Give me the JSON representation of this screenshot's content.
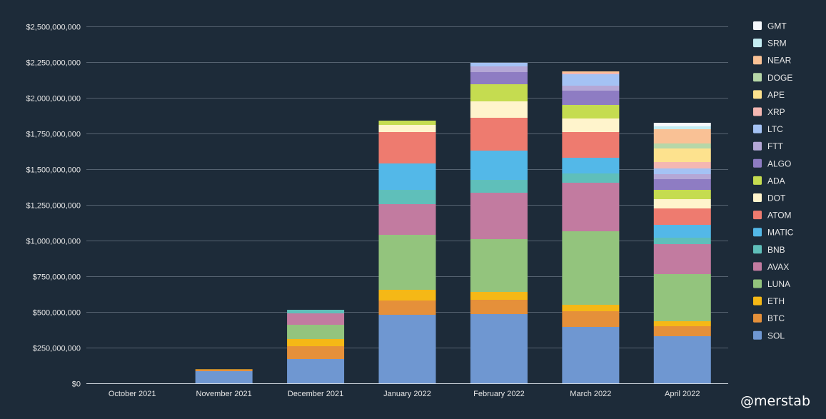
{
  "chart_data": {
    "type": "bar",
    "stacked": true,
    "categories": [
      "October 2021",
      "November 2021",
      "December 2021",
      "January 2022",
      "February 2022",
      "March 2022",
      "April 2022"
    ],
    "ylim": [
      0,
      2500000000
    ],
    "y_ticks": [
      0,
      250000000,
      500000000,
      750000000,
      1000000000,
      1250000000,
      1500000000,
      1750000000,
      2000000000,
      2250000000,
      2500000000
    ],
    "y_tick_labels": [
      "$0",
      "$250,000,000",
      "$500,000,000",
      "$750,000,000",
      "$1,000,000,000",
      "$1,250,000,000",
      "$1,500,000,000",
      "$1,750,000,000",
      "$2,000,000,000",
      "$2,250,000,000",
      "$2,500,000,000"
    ],
    "grid": true,
    "legend_position": "right",
    "series": [
      {
        "name": "SOL",
        "color": "#6f97d1",
        "values": [
          0,
          85000000,
          170000000,
          480000000,
          485000000,
          395000000,
          330000000
        ]
      },
      {
        "name": "BTC",
        "color": "#e5903a",
        "values": [
          0,
          12000000,
          90000000,
          100000000,
          100000000,
          110000000,
          70000000
        ]
      },
      {
        "name": "ETH",
        "color": "#f5b816",
        "values": [
          0,
          2000000,
          50000000,
          75000000,
          55000000,
          45000000,
          35000000
        ]
      },
      {
        "name": "LUNA",
        "color": "#93c47d",
        "values": [
          0,
          0,
          100000000,
          385000000,
          370000000,
          515000000,
          330000000
        ]
      },
      {
        "name": "AVAX",
        "color": "#c27ba0",
        "values": [
          0,
          0,
          80000000,
          215000000,
          325000000,
          340000000,
          210000000
        ]
      },
      {
        "name": "BNB",
        "color": "#5fbfba",
        "values": [
          0,
          0,
          25000000,
          100000000,
          90000000,
          65000000,
          45000000
        ]
      },
      {
        "name": "MATIC",
        "color": "#53b8e8",
        "values": [
          0,
          0,
          0,
          185000000,
          205000000,
          110000000,
          90000000
        ]
      },
      {
        "name": "ATOM",
        "color": "#ee7b6f",
        "values": [
          0,
          0,
          0,
          220000000,
          230000000,
          180000000,
          115000000
        ]
      },
      {
        "name": "DOT",
        "color": "#fff4cc",
        "values": [
          0,
          0,
          0,
          50000000,
          115000000,
          95000000,
          65000000
        ]
      },
      {
        "name": "ADA",
        "color": "#c5dc50",
        "values": [
          0,
          0,
          0,
          30000000,
          120000000,
          95000000,
          65000000
        ]
      },
      {
        "name": "ALGO",
        "color": "#8e7cc3",
        "values": [
          0,
          0,
          0,
          0,
          85000000,
          100000000,
          75000000
        ]
      },
      {
        "name": "FTT",
        "color": "#b4a7d6",
        "values": [
          0,
          0,
          0,
          0,
          40000000,
          35000000,
          35000000
        ]
      },
      {
        "name": "LTC",
        "color": "#a4c2f4",
        "values": [
          0,
          0,
          0,
          0,
          25000000,
          80000000,
          40000000
        ]
      },
      {
        "name": "XRP",
        "color": "#f4b7b2",
        "values": [
          0,
          0,
          0,
          0,
          0,
          10000000,
          45000000
        ]
      },
      {
        "name": "APE",
        "color": "#fde28e",
        "values": [
          0,
          0,
          0,
          0,
          0,
          0,
          95000000
        ]
      },
      {
        "name": "DOGE",
        "color": "#b6d7a8",
        "values": [
          0,
          0,
          0,
          0,
          0,
          0,
          35000000
        ]
      },
      {
        "name": "NEAR",
        "color": "#f9c195",
        "values": [
          0,
          0,
          0,
          0,
          0,
          10000000,
          100000000
        ]
      },
      {
        "name": "SRM",
        "color": "#c4ecf2",
        "values": [
          0,
          0,
          0,
          0,
          0,
          0,
          20000000
        ]
      },
      {
        "name": "GMT",
        "color": "#f5f8fc",
        "values": [
          0,
          0,
          0,
          0,
          0,
          0,
          25000000
        ]
      }
    ],
    "legend_order": [
      "GMT",
      "SRM",
      "NEAR",
      "DOGE",
      "APE",
      "XRP",
      "LTC",
      "FTT",
      "ALGO",
      "ADA",
      "DOT",
      "ATOM",
      "MATIC",
      "BNB",
      "AVAX",
      "LUNA",
      "ETH",
      "BTC",
      "SOL"
    ]
  },
  "watermark": "@merstab",
  "colors": {
    "background": "#1d2b39",
    "gridline": "#556270",
    "axis": "#cfd6dd",
    "text": "#e6e6e6"
  }
}
